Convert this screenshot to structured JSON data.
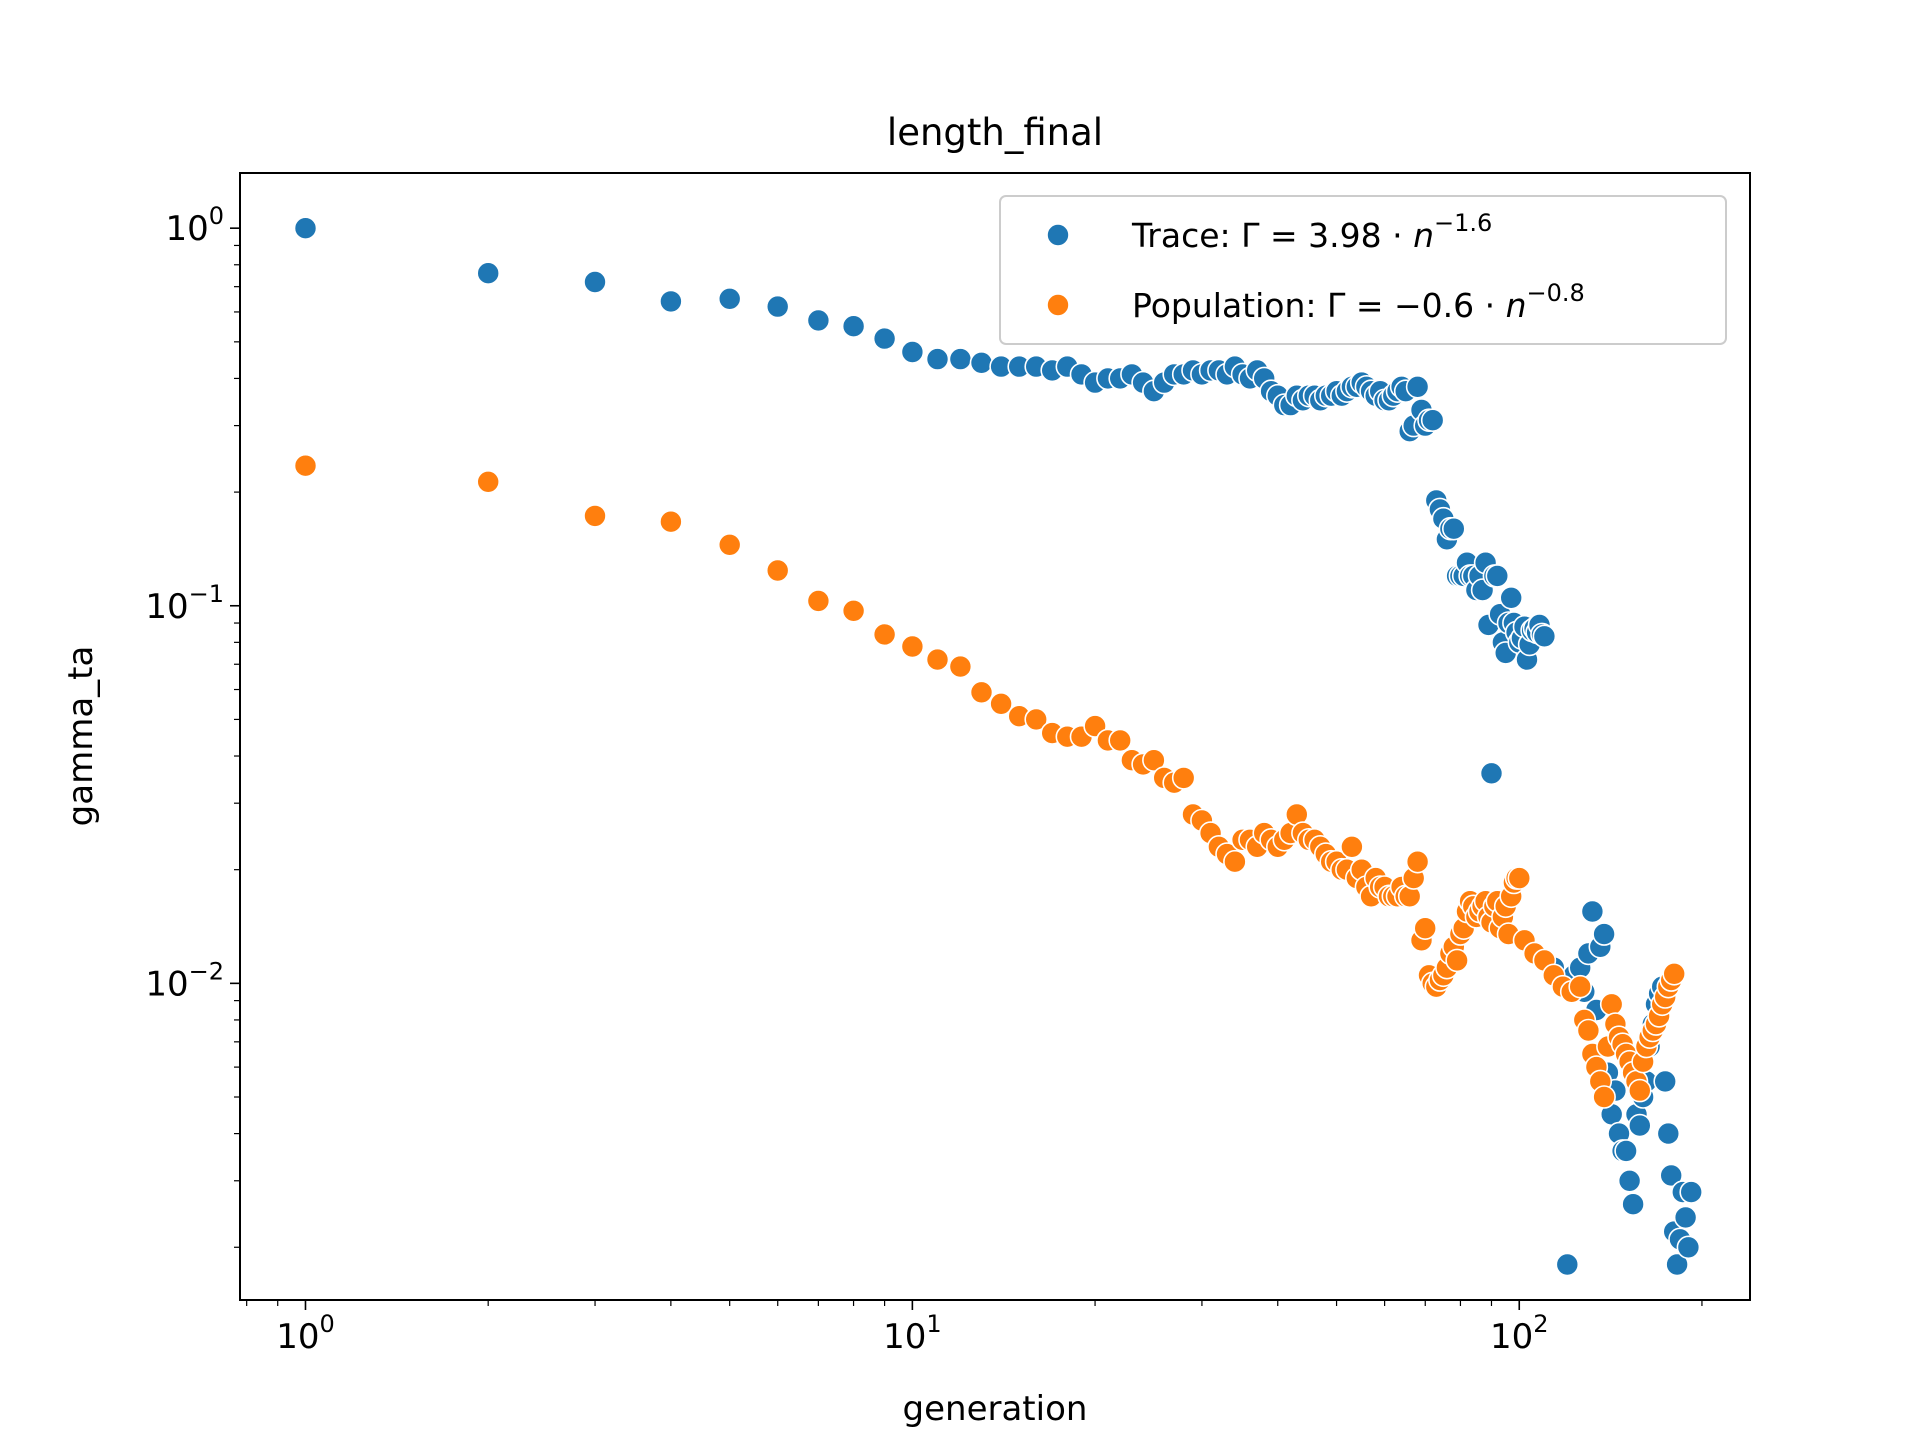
{
  "chart_data": {
    "type": "scatter",
    "title": "length_final",
    "xlabel": "generation",
    "ylabel": "gamma_ta",
    "xscale": "log",
    "yscale": "log",
    "xlim": [
      0.78,
      240
    ],
    "ylim": [
      0.00145,
      1.4
    ],
    "grid": false,
    "legend_position": "top-right",
    "x_ticks": [
      {
        "value": 1,
        "base": "10",
        "exp": "0"
      },
      {
        "value": 10,
        "base": "10",
        "exp": "1"
      },
      {
        "value": 100,
        "base": "10",
        "exp": "2"
      }
    ],
    "y_ticks": [
      {
        "value": 1,
        "base": "10",
        "exp": "0"
      },
      {
        "value": 0.1,
        "base": "10",
        "exp": "−1"
      },
      {
        "value": 0.01,
        "base": "10",
        "exp": "−2"
      }
    ],
    "series": [
      {
        "name": "Trace",
        "legend": {
          "prefix": "Trace: Γ = 3.98 · ",
          "var": "n",
          "exp": "−1.6"
        },
        "color": "#1f77b4",
        "points": [
          [
            1,
            1.0
          ],
          [
            2,
            0.76
          ],
          [
            3,
            0.72
          ],
          [
            4,
            0.64
          ],
          [
            5,
            0.65
          ],
          [
            6,
            0.62
          ],
          [
            7,
            0.57
          ],
          [
            8,
            0.55
          ],
          [
            9,
            0.51
          ],
          [
            10,
            0.47
          ],
          [
            11,
            0.45
          ],
          [
            12,
            0.45
          ],
          [
            13,
            0.44
          ],
          [
            14,
            0.43
          ],
          [
            15,
            0.43
          ],
          [
            16,
            0.43
          ],
          [
            17,
            0.42
          ],
          [
            18,
            0.43
          ],
          [
            19,
            0.41
          ],
          [
            20,
            0.39
          ],
          [
            21,
            0.4
          ],
          [
            22,
            0.4
          ],
          [
            23,
            0.41
          ],
          [
            24,
            0.39
          ],
          [
            25,
            0.37
          ],
          [
            26,
            0.39
          ],
          [
            27,
            0.41
          ],
          [
            28,
            0.41
          ],
          [
            29,
            0.42
          ],
          [
            30,
            0.41
          ],
          [
            31,
            0.42
          ],
          [
            32,
            0.42
          ],
          [
            33,
            0.41
          ],
          [
            34,
            0.43
          ],
          [
            35,
            0.41
          ],
          [
            36,
            0.4
          ],
          [
            37,
            0.42
          ],
          [
            38,
            0.4
          ],
          [
            39,
            0.37
          ],
          [
            40,
            0.36
          ],
          [
            41,
            0.34
          ],
          [
            42,
            0.34
          ],
          [
            43,
            0.36
          ],
          [
            44,
            0.35
          ],
          [
            45,
            0.36
          ],
          [
            46,
            0.36
          ],
          [
            47,
            0.35
          ],
          [
            48,
            0.36
          ],
          [
            49,
            0.36
          ],
          [
            50,
            0.37
          ],
          [
            51,
            0.36
          ],
          [
            52,
            0.37
          ],
          [
            53,
            0.38
          ],
          [
            54,
            0.38
          ],
          [
            55,
            0.39
          ],
          [
            56,
            0.38
          ],
          [
            57,
            0.37
          ],
          [
            58,
            0.36
          ],
          [
            59,
            0.37
          ],
          [
            60,
            0.35
          ],
          [
            61,
            0.35
          ],
          [
            62,
            0.36
          ],
          [
            63,
            0.37
          ],
          [
            64,
            0.38
          ],
          [
            65,
            0.37
          ],
          [
            66,
            0.29
          ],
          [
            67,
            0.3
          ],
          [
            68,
            0.38
          ],
          [
            69,
            0.33
          ],
          [
            70,
            0.3
          ],
          [
            71,
            0.31
          ],
          [
            72,
            0.31
          ],
          [
            73,
            0.19
          ],
          [
            74,
            0.18
          ],
          [
            75,
            0.17
          ],
          [
            76,
            0.15
          ],
          [
            77,
            0.16
          ],
          [
            78,
            0.16
          ],
          [
            79,
            0.12
          ],
          [
            80,
            0.12
          ],
          [
            81,
            0.12
          ],
          [
            82,
            0.13
          ],
          [
            83,
            0.12
          ],
          [
            84,
            0.12
          ],
          [
            85,
            0.11
          ],
          [
            86,
            0.12
          ],
          [
            87,
            0.11
          ],
          [
            88,
            0.13
          ],
          [
            89,
            0.089
          ],
          [
            90,
            0.036
          ],
          [
            91,
            0.12
          ],
          [
            92,
            0.12
          ],
          [
            93,
            0.095
          ],
          [
            94,
            0.08
          ],
          [
            95,
            0.075
          ],
          [
            96,
            0.09
          ],
          [
            97,
            0.105
          ],
          [
            98,
            0.09
          ],
          [
            99,
            0.085
          ],
          [
            100,
            0.08
          ],
          [
            101,
            0.082
          ],
          [
            102,
            0.088
          ],
          [
            103,
            0.072
          ],
          [
            104,
            0.079
          ],
          [
            105,
            0.086
          ],
          [
            106,
            0.087
          ],
          [
            107,
            0.085
          ],
          [
            108,
            0.089
          ],
          [
            109,
            0.084
          ],
          [
            110,
            0.083
          ],
          [
            114,
            0.011
          ],
          [
            118,
            0.0099
          ],
          [
            120,
            0.0018
          ],
          [
            123,
            0.0105
          ],
          [
            126,
            0.011
          ],
          [
            128,
            0.0095
          ],
          [
            130,
            0.012
          ],
          [
            132,
            0.0155
          ],
          [
            134,
            0.0085
          ],
          [
            136,
            0.0125
          ],
          [
            138,
            0.0135
          ],
          [
            140,
            0.0058
          ],
          [
            142,
            0.0045
          ],
          [
            144,
            0.0052
          ],
          [
            146,
            0.004
          ],
          [
            148,
            0.0036
          ],
          [
            150,
            0.0036
          ],
          [
            152,
            0.003
          ],
          [
            154,
            0.0026
          ],
          [
            156,
            0.0045
          ],
          [
            158,
            0.0042
          ],
          [
            160,
            0.005
          ],
          [
            162,
            0.0055
          ],
          [
            164,
            0.0068
          ],
          [
            166,
            0.0078
          ],
          [
            168,
            0.0088
          ],
          [
            170,
            0.0094
          ],
          [
            172,
            0.0098
          ],
          [
            174,
            0.0055
          ],
          [
            176,
            0.004
          ],
          [
            178,
            0.0031
          ],
          [
            180,
            0.0022
          ],
          [
            182,
            0.0018
          ],
          [
            184,
            0.0021
          ],
          [
            186,
            0.0028
          ],
          [
            188,
            0.0024
          ],
          [
            190,
            0.002
          ],
          [
            192,
            0.0028
          ]
        ]
      },
      {
        "name": "Population",
        "legend": {
          "prefix": "Population: Γ = −0.6 · ",
          "var": "n",
          "exp": "−0.8"
        },
        "color": "#ff7f0e",
        "points": [
          [
            1,
            0.235
          ],
          [
            2,
            0.213
          ],
          [
            3,
            0.173
          ],
          [
            4,
            0.167
          ],
          [
            5,
            0.145
          ],
          [
            6,
            0.124
          ],
          [
            7,
            0.103
          ],
          [
            8,
            0.097
          ],
          [
            9,
            0.084
          ],
          [
            10,
            0.078
          ],
          [
            11,
            0.072
          ],
          [
            12,
            0.069
          ],
          [
            13,
            0.059
          ],
          [
            14,
            0.055
          ],
          [
            15,
            0.051
          ],
          [
            16,
            0.05
          ],
          [
            17,
            0.046
          ],
          [
            18,
            0.045
          ],
          [
            19,
            0.045
          ],
          [
            20,
            0.048
          ],
          [
            21,
            0.044
          ],
          [
            22,
            0.044
          ],
          [
            23,
            0.039
          ],
          [
            24,
            0.038
          ],
          [
            25,
            0.039
          ],
          [
            26,
            0.035
          ],
          [
            27,
            0.034
          ],
          [
            28,
            0.035
          ],
          [
            29,
            0.028
          ],
          [
            30,
            0.027
          ],
          [
            31,
            0.025
          ],
          [
            32,
            0.023
          ],
          [
            33,
            0.022
          ],
          [
            34,
            0.021
          ],
          [
            35,
            0.024
          ],
          [
            36,
            0.024
          ],
          [
            37,
            0.023
          ],
          [
            38,
            0.025
          ],
          [
            39,
            0.024
          ],
          [
            40,
            0.023
          ],
          [
            41,
            0.024
          ],
          [
            42,
            0.025
          ],
          [
            43,
            0.028
          ],
          [
            44,
            0.025
          ],
          [
            45,
            0.024
          ],
          [
            46,
            0.024
          ],
          [
            47,
            0.023
          ],
          [
            48,
            0.022
          ],
          [
            49,
            0.021
          ],
          [
            50,
            0.021
          ],
          [
            51,
            0.02
          ],
          [
            52,
            0.02
          ],
          [
            53,
            0.023
          ],
          [
            54,
            0.019
          ],
          [
            55,
            0.02
          ],
          [
            56,
            0.018
          ],
          [
            57,
            0.017
          ],
          [
            58,
            0.019
          ],
          [
            59,
            0.018
          ],
          [
            60,
            0.018
          ],
          [
            61,
            0.017
          ],
          [
            62,
            0.017
          ],
          [
            63,
            0.017
          ],
          [
            64,
            0.018
          ],
          [
            65,
            0.017
          ],
          [
            66,
            0.017
          ],
          [
            67,
            0.019
          ],
          [
            68,
            0.021
          ],
          [
            69,
            0.013
          ],
          [
            70,
            0.014
          ],
          [
            71,
            0.0105
          ],
          [
            72,
            0.01
          ],
          [
            73,
            0.0098
          ],
          [
            74,
            0.0102
          ],
          [
            75,
            0.0105
          ],
          [
            76,
            0.011
          ],
          [
            77,
            0.012
          ],
          [
            78,
            0.0125
          ],
          [
            79,
            0.0115
          ],
          [
            80,
            0.0135
          ],
          [
            81,
            0.014
          ],
          [
            82,
            0.0155
          ],
          [
            83,
            0.0165
          ],
          [
            84,
            0.016
          ],
          [
            85,
            0.015
          ],
          [
            86,
            0.0155
          ],
          [
            87,
            0.016
          ],
          [
            88,
            0.0165
          ],
          [
            89,
            0.015
          ],
          [
            90,
            0.0145
          ],
          [
            91,
            0.016
          ],
          [
            92,
            0.0165
          ],
          [
            93,
            0.014
          ],
          [
            94,
            0.015
          ],
          [
            95,
            0.016
          ],
          [
            96,
            0.0135
          ],
          [
            97,
            0.017
          ],
          [
            98,
            0.0185
          ],
          [
            99,
            0.019
          ],
          [
            100,
            0.019
          ],
          [
            102,
            0.013
          ],
          [
            106,
            0.012
          ],
          [
            110,
            0.0115
          ],
          [
            114,
            0.0105
          ],
          [
            118,
            0.0098
          ],
          [
            122,
            0.0095
          ],
          [
            126,
            0.0098
          ],
          [
            128,
            0.008
          ],
          [
            130,
            0.0075
          ],
          [
            132,
            0.0065
          ],
          [
            134,
            0.006
          ],
          [
            136,
            0.0055
          ],
          [
            138,
            0.005
          ],
          [
            140,
            0.0068
          ],
          [
            142,
            0.0088
          ],
          [
            144,
            0.0078
          ],
          [
            146,
            0.0072
          ],
          [
            148,
            0.0069
          ],
          [
            150,
            0.0065
          ],
          [
            152,
            0.0062
          ],
          [
            154,
            0.0058
          ],
          [
            156,
            0.0055
          ],
          [
            158,
            0.0052
          ],
          [
            160,
            0.0062
          ],
          [
            162,
            0.0068
          ],
          [
            164,
            0.0072
          ],
          [
            166,
            0.0075
          ],
          [
            168,
            0.0078
          ],
          [
            170,
            0.0082
          ],
          [
            172,
            0.0088
          ],
          [
            174,
            0.0092
          ],
          [
            176,
            0.0098
          ],
          [
            178,
            0.0102
          ],
          [
            180,
            0.0106
          ]
        ]
      }
    ]
  }
}
